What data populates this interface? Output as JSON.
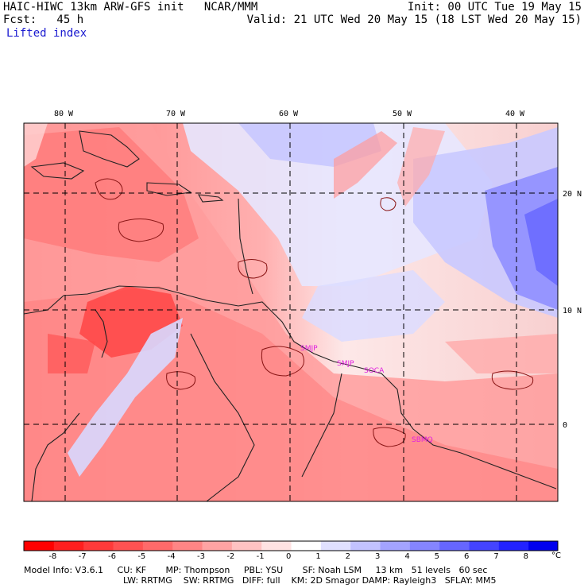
{
  "header": {
    "model_line": "HAIC-HIWC 13km ARW-GFS init   NCAR/MMM",
    "forecast_line": "Fcst:   45 h",
    "init_line": "Init: 00 UTC Tue 19 May 15",
    "valid_line": "Valid: 21 UTC Wed 20 May 15 (18 LST Wed 20 May 15)",
    "field_name": "Lifted index"
  },
  "map": {
    "lon_labels": [
      "80 W",
      "70 W",
      "60 W",
      "50 W",
      "40 W"
    ],
    "lat_labels": [
      "20 N",
      "10 N",
      "0"
    ],
    "station_labels": [
      "SMJP",
      "SMJP",
      "SOCA",
      "SBMQ"
    ]
  },
  "colorbar": {
    "ticks": [
      "-8",
      "-7",
      "-6",
      "-5",
      "-4",
      "-3",
      "-2",
      "-1",
      "0",
      "1",
      "2",
      "3",
      "4",
      "5",
      "6",
      "7",
      "8"
    ],
    "unit": "°C",
    "colors": [
      "#ff0000",
      "#ff1f1f",
      "#ff3a3a",
      "#ff5252",
      "#ff6a6a",
      "#ff8585",
      "#ffa3a3",
      "#ffc2c2",
      "#ffe2e2",
      "#ffffff",
      "#e0e0ff",
      "#c2c2ff",
      "#a3a3ff",
      "#8585ff",
      "#6666ff",
      "#4444ff",
      "#2222ff",
      "#0000ee"
    ]
  },
  "footer": {
    "line1": "Model Info: V3.6.1     CU: KF       MP: Thompson     PBL: YSU       SF: Noah LSM     13 km   51 levels   60 sec",
    "line2": "LW: RRTMG    SW: RRTMG   DIFF: full    KM: 2D Smagor DAMP: Rayleigh3   SFLAY: MM5"
  }
}
